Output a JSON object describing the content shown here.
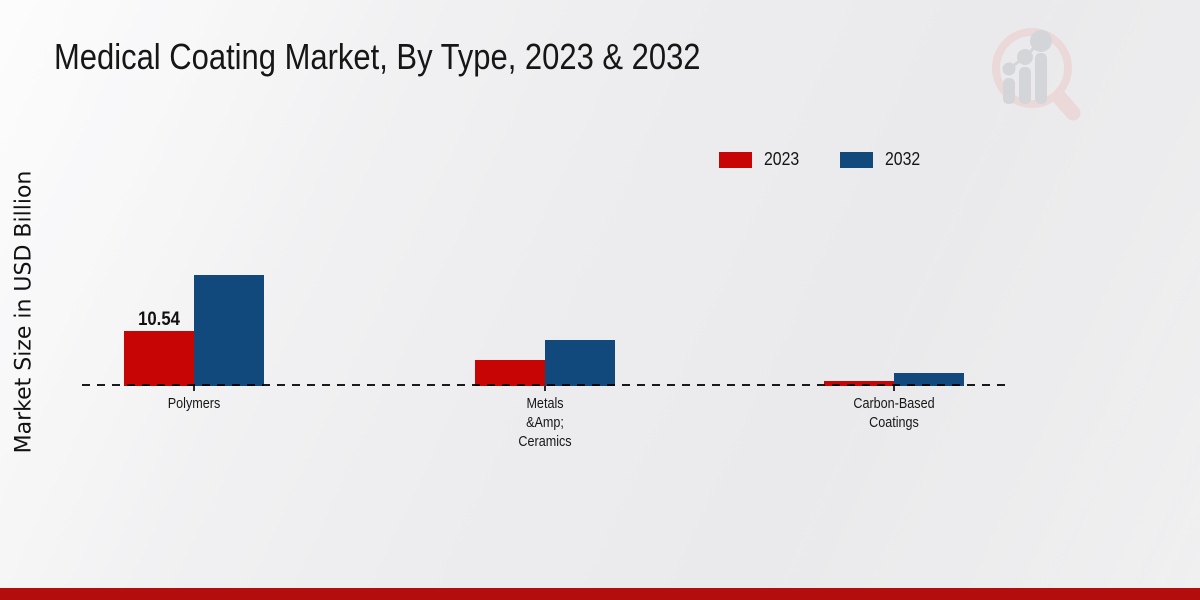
{
  "title": "Medical Coating Market, By Type, 2023 & 2032",
  "chart_data": {
    "type": "bar",
    "title": "Medical Coating Market, By Type, 2023 & 2032",
    "ylabel": "Market Size in USD Billion",
    "xlabel": "",
    "categories": [
      "Polymers",
      "Metals &Amp; Ceramics",
      "Carbon-Based Coatings"
    ],
    "category_label_lines": [
      [
        "Polymers"
      ],
      [
        "Metals",
        "&Amp;",
        "Ceramics"
      ],
      [
        "Carbon-Based",
        "Coatings"
      ]
    ],
    "series": [
      {
        "name": "2023",
        "color": "#c80505",
        "values": [
          10.54,
          5.0,
          0.9
        ]
      },
      {
        "name": "2032",
        "color": "#11497d",
        "values": [
          21.3,
          8.8,
          2.5
        ]
      }
    ],
    "value_labels": [
      {
        "seriesIndex": 0,
        "categoryIndex": 0,
        "text": "10.54"
      }
    ],
    "ylim": [
      0,
      23
    ],
    "grid": false,
    "legend_position": "top-right",
    "baseline_style": "dashed"
  },
  "footer": {
    "band_color": "#b30d0d"
  },
  "watermark_icon": "magnifier-bar-chart-logo"
}
